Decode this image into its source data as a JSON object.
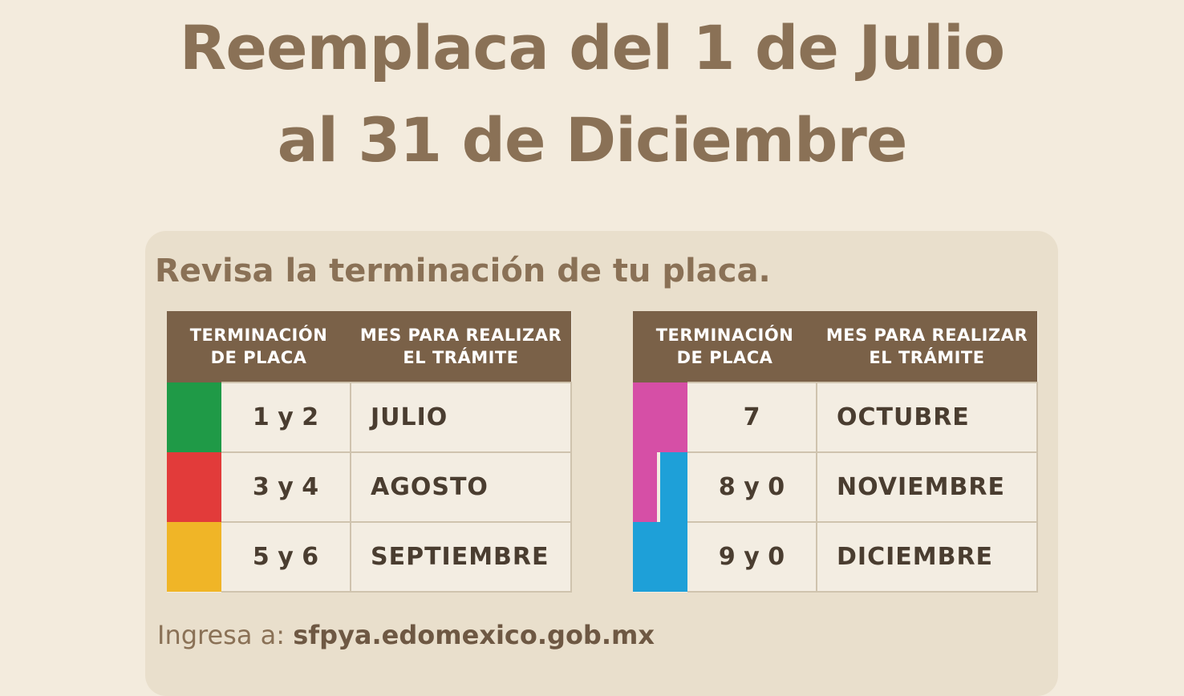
{
  "title": {
    "line1": "Reemplaca del 1 de Julio",
    "line2": "al 31 de Diciembre"
  },
  "subtitle": "Revisa la terminación de tu placa.",
  "table_headers": {
    "col1_line1": "TERMINACIÓN",
    "col1_line2": "DE PLACA",
    "col2_line1": "MES PARA REALIZAR",
    "col2_line2": "EL TRÁMITE"
  },
  "left_table": {
    "rows": [
      {
        "digits": "1 y 2",
        "month": "JULIO",
        "colors": [
          "#1f9a47"
        ]
      },
      {
        "digits": "3 y 4",
        "month": "AGOSTO",
        "colors": [
          "#e23b3a"
        ]
      },
      {
        "digits": "5 y 6",
        "month": "SEPTIEMBRE",
        "colors": [
          "#f0b527"
        ]
      }
    ]
  },
  "right_table": {
    "rows": [
      {
        "digits": "7",
        "month": "OCTUBRE",
        "colors": [
          "#d64fa6"
        ]
      },
      {
        "digits": "8 y 0",
        "month": "NOVIEMBRE",
        "colors": [
          "#d64fa6",
          "#1ea0d8"
        ]
      },
      {
        "digits": "9 y 0",
        "month": "DICIEMBRE",
        "colors": [
          "#1ea0d8"
        ]
      }
    ]
  },
  "footer": {
    "prefix": "Ingresa a:",
    "url": "sfpya.edomexico.gob.mx"
  },
  "palette": {
    "background": "#f3ebdd",
    "card": "#e9dfcc",
    "brown_text": "#8a7156",
    "header_bg": "#7a6148"
  }
}
